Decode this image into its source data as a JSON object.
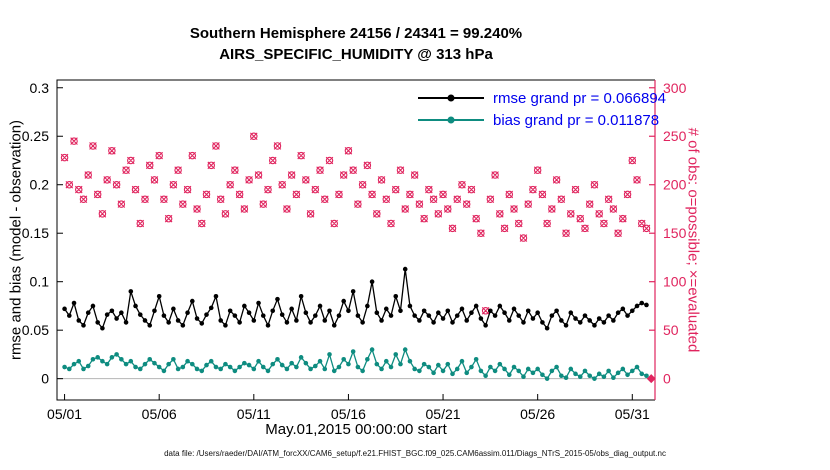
{
  "title": {
    "line1": "Southern Hemisphere 24156 / 24341 = 99.240%",
    "line2": "AIRS_SPECIFIC_HUMIDITY @ 313 hPa"
  },
  "legend": {
    "rmse_label": "rmse grand pr = 0.066894",
    "bias_label": "bias grand pr = 0.011878"
  },
  "axes": {
    "left_label": "rmse and bias (model - observation)",
    "right_label": "# of obs: o=possible; ×=evaluated",
    "xlabel": "May.01,2015 00:00:00 start",
    "x_tick_labels": [
      "05/01",
      "05/06",
      "05/11",
      "05/16",
      "05/21",
      "05/26",
      "05/31"
    ],
    "x_tick_values": [
      0,
      5,
      10,
      15,
      20,
      25,
      30
    ],
    "left_ticks": [
      0,
      0.05,
      0.1,
      0.15,
      0.2,
      0.25,
      0.3
    ],
    "left_tick_labels": [
      "0",
      "0.05",
      "0.1",
      "0.15",
      "0.2",
      "0.25",
      "0.3"
    ],
    "right_ticks": [
      0,
      50,
      100,
      150,
      200,
      250,
      300
    ],
    "right_tick_labels": [
      "0",
      "50",
      "100",
      "150",
      "200",
      "250",
      "300"
    ],
    "xlim": [
      -0.4,
      31.2
    ],
    "left_ylim": [
      -0.022,
      0.308
    ],
    "right_ylim": [
      -22,
      308
    ]
  },
  "footer": "data file: /Users/raeder/DAI/ATM_forcXX/CAM6_setup/f.e21.FHIST_BGC.f09_025.CAM6assim.011/Diags_NTrS_2015-05/obs_diag_output.nc",
  "colors": {
    "rmse": "#000000",
    "bias": "#0e8c80",
    "obs": "#e0245e",
    "legend_text": "#0000ee",
    "zero_line": "#b5b5b5"
  },
  "chart_data": {
    "type": "line",
    "title": "Southern Hemisphere 24156 / 24341 = 99.240% | AIRS_SPECIFIC_HUMIDITY @ 313 hPa",
    "x_description": "days since May 1 2015 00:00, 6-hourly bins",
    "t_start": 0,
    "t_step": 0.25,
    "left_axis_range": [
      0,
      0.3
    ],
    "right_axis_range": [
      0,
      300
    ],
    "grand_rmse": 0.066894,
    "grand_bias": 0.011878,
    "possible_total": 24341,
    "evaluated_total": 24156,
    "evaluated_percent": 99.24,
    "series": [
      {
        "name": "rmse",
        "axis": "left",
        "marker": "filled-dot",
        "values": [
          0.072,
          0.065,
          0.078,
          0.06,
          0.055,
          0.068,
          0.075,
          0.058,
          0.052,
          0.066,
          0.07,
          0.062,
          0.068,
          0.058,
          0.09,
          0.075,
          0.066,
          0.06,
          0.055,
          0.07,
          0.085,
          0.065,
          0.058,
          0.072,
          0.06,
          0.055,
          0.068,
          0.08,
          0.062,
          0.057,
          0.066,
          0.073,
          0.085,
          0.06,
          0.055,
          0.07,
          0.065,
          0.058,
          0.075,
          0.068,
          0.06,
          0.078,
          0.065,
          0.055,
          0.07,
          0.082,
          0.066,
          0.058,
          0.072,
          0.06,
          0.085,
          0.068,
          0.058,
          0.065,
          0.075,
          0.06,
          0.07,
          0.055,
          0.065,
          0.08,
          0.07,
          0.09,
          0.065,
          0.058,
          0.075,
          0.1,
          0.068,
          0.06,
          0.072,
          0.065,
          0.085,
          0.07,
          0.113,
          0.075,
          0.065,
          0.06,
          0.07,
          0.065,
          0.058,
          0.068,
          0.062,
          0.07,
          0.058,
          0.065,
          0.072,
          0.06,
          0.068,
          0.075,
          0.062,
          0.055,
          0.07,
          0.065,
          0.075,
          0.068,
          0.06,
          0.072,
          0.065,
          0.058,
          0.07,
          0.062,
          0.068,
          0.058,
          0.052,
          0.065,
          0.07,
          0.06,
          0.055,
          0.068,
          0.062,
          0.058,
          0.065,
          0.06,
          0.055,
          0.062,
          0.058,
          0.065,
          0.06,
          0.068,
          0.072,
          0.065,
          0.07,
          0.075,
          0.078,
          0.076
        ]
      },
      {
        "name": "bias",
        "axis": "left",
        "marker": "filled-dot",
        "values": [
          0.012,
          0.01,
          0.015,
          0.018,
          0.01,
          0.013,
          0.02,
          0.022,
          0.018,
          0.015,
          0.022,
          0.025,
          0.02,
          0.015,
          0.018,
          0.012,
          0.01,
          0.015,
          0.02,
          0.016,
          0.012,
          0.008,
          0.015,
          0.02,
          0.01,
          0.012,
          0.018,
          0.015,
          0.01,
          0.008,
          0.014,
          0.018,
          0.012,
          0.01,
          0.015,
          0.012,
          0.008,
          0.012,
          0.016,
          0.014,
          0.01,
          0.018,
          0.012,
          0.008,
          0.015,
          0.02,
          0.014,
          0.01,
          0.016,
          0.012,
          0.022,
          0.016,
          0.01,
          0.013,
          0.018,
          0.01,
          0.025,
          0.008,
          0.012,
          0.02,
          0.015,
          0.028,
          0.012,
          0.008,
          0.02,
          0.03,
          0.015,
          0.01,
          0.018,
          0.012,
          0.025,
          0.015,
          0.03,
          0.018,
          0.01,
          0.008,
          0.015,
          0.012,
          0.006,
          0.014,
          0.008,
          0.015,
          0.005,
          0.01,
          0.018,
          0.006,
          0.012,
          0.02,
          0.008,
          0.003,
          0.012,
          0.008,
          0.015,
          0.01,
          0.004,
          0.012,
          0.008,
          0.002,
          0.01,
          0.006,
          0.01,
          0.004,
          0.0,
          0.008,
          0.012,
          0.003,
          0.001,
          0.01,
          0.005,
          0.002,
          0.008,
          0.003,
          0.0,
          0.005,
          0.002,
          0.008,
          0.001,
          0.006,
          0.01,
          0.004,
          0.008,
          0.012,
          0.005,
          0.003
        ]
      },
      {
        "name": "obs_possible",
        "axis": "right",
        "marker": "o",
        "values": [
          228,
          200,
          245,
          195,
          185,
          210,
          240,
          190,
          170,
          205,
          235,
          200,
          180,
          215,
          225,
          195,
          160,
          185,
          220,
          205,
          230,
          185,
          165,
          200,
          215,
          180,
          195,
          230,
          175,
          160,
          190,
          220,
          240,
          185,
          170,
          200,
          215,
          190,
          175,
          205,
          250,
          210,
          180,
          195,
          225,
          240,
          200,
          175,
          210,
          190,
          230,
          205,
          170,
          195,
          215,
          185,
          225,
          160,
          190,
          210,
          235,
          215,
          180,
          200,
          220,
          190,
          170,
          205,
          185,
          160,
          195,
          215,
          175,
          190,
          210,
          180,
          165,
          195,
          185,
          170,
          190,
          175,
          155,
          185,
          200,
          180,
          195,
          165,
          150,
          70,
          185,
          210,
          170,
          155,
          190,
          175,
          160,
          145,
          180,
          195,
          215,
          190,
          160,
          175,
          205,
          185,
          150,
          170,
          195,
          165,
          155,
          180,
          200,
          170,
          160,
          185,
          175,
          150,
          165,
          190,
          225,
          205,
          160,
          155
        ]
      },
      {
        "name": "obs_evaluated",
        "axis": "right",
        "marker": "x",
        "values": [
          228,
          200,
          245,
          195,
          185,
          210,
          240,
          190,
          170,
          205,
          235,
          200,
          180,
          215,
          225,
          195,
          160,
          185,
          220,
          205,
          230,
          185,
          165,
          200,
          215,
          180,
          195,
          230,
          175,
          160,
          190,
          220,
          240,
          185,
          170,
          200,
          215,
          190,
          175,
          205,
          250,
          210,
          180,
          195,
          225,
          240,
          200,
          175,
          210,
          190,
          230,
          205,
          170,
          195,
          215,
          185,
          225,
          160,
          190,
          210,
          235,
          215,
          180,
          200,
          220,
          190,
          170,
          205,
          185,
          160,
          195,
          215,
          175,
          190,
          210,
          180,
          165,
          195,
          185,
          170,
          190,
          175,
          155,
          185,
          200,
          180,
          195,
          165,
          150,
          70,
          185,
          210,
          170,
          155,
          190,
          175,
          160,
          145,
          180,
          195,
          215,
          190,
          160,
          175,
          205,
          185,
          150,
          170,
          195,
          165,
          155,
          180,
          200,
          170,
          160,
          185,
          175,
          150,
          165,
          190,
          225,
          205,
          160,
          155
        ]
      }
    ],
    "final_point": {
      "t": 31.0,
      "value": 0,
      "marker": "diamond",
      "axis": "right"
    }
  }
}
